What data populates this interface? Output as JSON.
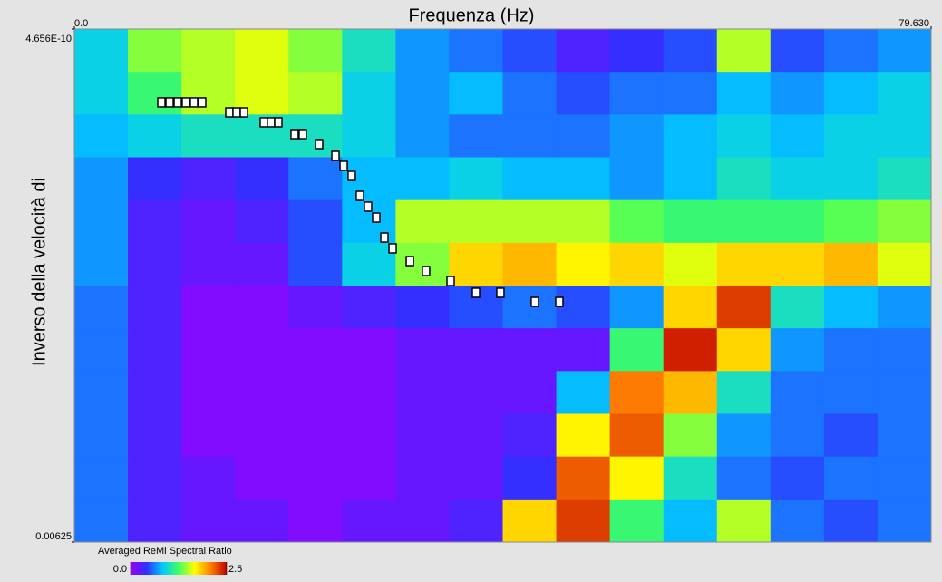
{
  "chart_data": {
    "type": "heatmap",
    "xlabel": "Frequenza (Hz)",
    "ylabel": "Inverso della velocità di",
    "xlim": [
      0,
      79.63
    ],
    "ylim": [
      4.656e-10,
      0.00625
    ],
    "y_inverted": true,
    "xticks": [
      {
        "value": 0,
        "label": "0.0"
      },
      {
        "value": 79.63,
        "label": "79.630"
      }
    ],
    "yticks": [
      {
        "value": 4.656e-10,
        "label": "4.656E-10"
      },
      {
        "value": 0.00625,
        "label": "0.00625"
      }
    ],
    "colorbar": {
      "label": "Averaged ReMi Spectral Ratio",
      "zlim": [
        0,
        2.5
      ],
      "ticks": [
        {
          "value": 0,
          "label": "0.0"
        },
        {
          "value": 2.5,
          "label": "2.5"
        }
      ]
    },
    "colorscale": [
      "#9a00ff",
      "#3030ff",
      "#00c8ff",
      "#40ff60",
      "#ffff00",
      "#ff8000",
      "#c00000"
    ],
    "z": [
      [
        0.9,
        1.4,
        1.5,
        1.6,
        1.4,
        1.0,
        0.7,
        0.6,
        0.5,
        0.3,
        0.4,
        0.5,
        1.5,
        0.5,
        0.6,
        0.7
      ],
      [
        0.9,
        1.2,
        1.5,
        1.6,
        1.5,
        0.9,
        0.7,
        0.8,
        0.6,
        0.5,
        0.6,
        0.6,
        0.8,
        0.7,
        0.8,
        0.9
      ],
      [
        0.8,
        0.9,
        1.0,
        1.0,
        1.0,
        0.9,
        0.7,
        0.6,
        0.6,
        0.6,
        0.7,
        0.8,
        0.9,
        0.8,
        0.9,
        0.9
      ],
      [
        0.7,
        0.4,
        0.3,
        0.4,
        0.6,
        0.8,
        0.8,
        0.9,
        0.8,
        0.8,
        0.7,
        0.8,
        1.0,
        0.9,
        0.9,
        1.0
      ],
      [
        0.7,
        0.3,
        0.2,
        0.3,
        0.5,
        0.8,
        1.5,
        1.5,
        1.5,
        1.5,
        1.3,
        1.2,
        1.2,
        1.2,
        1.3,
        1.4
      ],
      [
        0.7,
        0.3,
        0.2,
        0.2,
        0.5,
        0.9,
        1.4,
        1.8,
        1.9,
        1.7,
        1.8,
        1.6,
        1.8,
        1.8,
        1.9,
        1.6
      ],
      [
        0.6,
        0.3,
        0.1,
        0.1,
        0.2,
        0.3,
        0.4,
        0.5,
        0.6,
        0.5,
        0.7,
        1.8,
        2.3,
        1.0,
        0.8,
        0.7
      ],
      [
        0.6,
        0.3,
        0.1,
        0.1,
        0.1,
        0.1,
        0.2,
        0.2,
        0.2,
        0.2,
        1.2,
        2.4,
        1.8,
        0.7,
        0.6,
        0.6
      ],
      [
        0.6,
        0.3,
        0.1,
        0.1,
        0.1,
        0.1,
        0.2,
        0.2,
        0.2,
        0.8,
        2.1,
        1.9,
        1.0,
        0.6,
        0.6,
        0.6
      ],
      [
        0.6,
        0.3,
        0.1,
        0.1,
        0.1,
        0.1,
        0.2,
        0.2,
        0.3,
        1.7,
        2.2,
        1.4,
        0.7,
        0.6,
        0.5,
        0.6
      ],
      [
        0.6,
        0.3,
        0.2,
        0.1,
        0.1,
        0.1,
        0.2,
        0.2,
        0.4,
        2.2,
        1.7,
        1.0,
        0.6,
        0.5,
        0.6,
        0.6
      ],
      [
        0.6,
        0.3,
        0.2,
        0.2,
        0.1,
        0.2,
        0.2,
        0.3,
        1.8,
        2.3,
        1.2,
        0.8,
        1.5,
        0.6,
        0.5,
        0.6
      ]
    ],
    "picks": {
      "x": [
        8.09,
        8.85,
        9.61,
        10.36,
        11.12,
        11.88,
        14.41,
        15.08,
        15.76,
        17.61,
        18.28,
        18.96,
        20.47,
        21.23,
        22.75,
        24.27,
        25.03,
        25.78,
        26.54,
        27.3,
        28.06,
        28.82,
        29.58,
        31.18,
        32.69,
        34.97,
        37.33,
        39.6,
        42.8,
        45.08
      ],
      "y": [
        0.000894,
        0.000894,
        0.000894,
        0.000894,
        0.000894,
        0.000894,
        0.001016,
        0.001016,
        0.001016,
        0.001137,
        0.001137,
        0.001137,
        0.001281,
        0.001281,
        0.001402,
        0.001546,
        0.001667,
        0.001789,
        0.002032,
        0.002164,
        0.002297,
        0.00254,
        0.002672,
        0.002827,
        0.002948,
        0.00307,
        0.003213,
        0.003213,
        0.003324,
        0.003324
      ]
    }
  }
}
